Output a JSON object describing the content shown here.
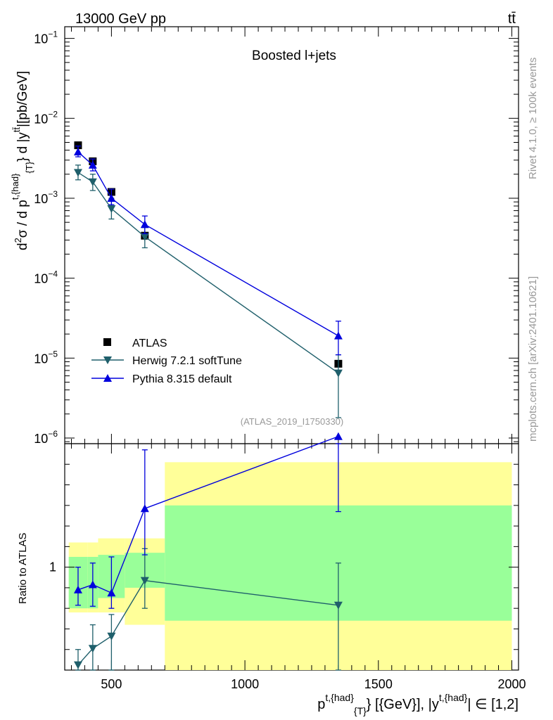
{
  "header": {
    "left": "13000 GeV pp",
    "right": "tt̄"
  },
  "side_labels": {
    "rivet": "Rivet 4.1.0, ≥ 100k events",
    "mcplots": "mcplots.cern.ch [arXiv:2401.10621]"
  },
  "colors": {
    "atlas": "#000000",
    "herwig": "#1f5f6b",
    "pythia": "#0000dd",
    "band_inner": "#99ff99",
    "band_outer": "#ffff99"
  },
  "chart_data": [
    {
      "type": "scatter",
      "title": "Boosted l+jets",
      "ylabel": "d²σ / d p^{t,{had}}_{T} d |y^{tt̄}|[pb/GeV]",
      "yscale": "log",
      "ylim": [
        8.5e-07,
        0.14
      ],
      "xlim": [
        325,
        2025
      ],
      "x_ticks": [
        500,
        1000,
        1500,
        2000
      ],
      "y_ticks": [
        {
          "value": 0.1,
          "mant": "10",
          "exp": "−1"
        },
        {
          "value": 0.01,
          "mant": "10",
          "exp": "−2"
        },
        {
          "value": 0.001,
          "mant": "10",
          "exp": "−3"
        },
        {
          "value": 0.0001,
          "mant": "10",
          "exp": "−4"
        },
        {
          "value": 1e-05,
          "mant": "10",
          "exp": "−5"
        },
        {
          "value": 1e-06,
          "mant": "10",
          "exp": "−6"
        }
      ],
      "watermark": "(ATLAS_2019_I1750330)",
      "legend": [
        "ATLAS",
        "Herwig 7.2.1 softTune",
        "Pythia 8.315 default"
      ],
      "legend_position": "lower-left",
      "series": [
        {
          "name": "ATLAS",
          "x": [
            375,
            430,
            500,
            625,
            1350
          ],
          "y": [
            0.0046,
            0.0029,
            0.0012,
            0.00034,
            8.5e-06
          ]
        },
        {
          "name": "Herwig 7.2.1 softTune",
          "x": [
            375,
            430,
            500,
            625,
            1350
          ],
          "y": [
            0.0021,
            0.0016,
            0.00074,
            0.00033,
            6.5e-06
          ],
          "err_lo": [
            0.0017,
            0.00125,
            0.00055,
            0.00024,
            1.8e-06
          ],
          "err_hi": [
            0.0026,
            0.002,
            0.001,
            0.00043,
            1.1e-05
          ]
        },
        {
          "name": "Pythia 8.315 default",
          "x": [
            375,
            430,
            500,
            625,
            1350
          ],
          "y": [
            0.0038,
            0.0026,
            0.001,
            0.00047,
            1.9e-05
          ],
          "err_lo": [
            0.0033,
            0.0022,
            0.00083,
            0.00036,
            1.1e-05
          ],
          "err_hi": [
            0.0045,
            0.0031,
            0.0013,
            0.0006,
            2.9e-05
          ]
        }
      ]
    },
    {
      "type": "scatter",
      "ylabel": "Ratio to ATLAS",
      "xlabel": "p^{t,{had}}_{T} [{GeV}], |y^{t,{had}}| ∈ [1,2]",
      "ylim": [
        0.5,
        1.6
      ],
      "y_ticks": [
        {
          "value": 1,
          "label": "1"
        }
      ],
      "bands": [
        {
          "x0": 340,
          "x1": 410,
          "inner": [
            0.8,
            1.05
          ],
          "outer": [
            0.78,
            1.12
          ]
        },
        {
          "x0": 410,
          "x1": 450,
          "inner": [
            0.8,
            1.05
          ],
          "outer": [
            0.78,
            1.12
          ]
        },
        {
          "x0": 450,
          "x1": 550,
          "inner": [
            0.85,
            1.06
          ],
          "outer": [
            0.78,
            1.14
          ]
        },
        {
          "x0": 550,
          "x1": 700,
          "inner": [
            0.9,
            1.07
          ],
          "outer": [
            0.72,
            1.14
          ]
        },
        {
          "x0": 700,
          "x1": 2000,
          "inner": [
            0.74,
            1.3
          ],
          "outer": [
            0.5,
            1.51
          ]
        }
      ],
      "series": [
        {
          "name": "Herwig 7.2.1 softTune",
          "x": [
            375,
            430,
            500,
            625,
            1350
          ],
          "y": [
            0.525,
            0.605,
            0.665,
            0.935,
            0.815
          ],
          "err_lo": [
            0.5,
            0.5,
            0.5,
            0.8,
            0.5
          ],
          "err_hi": [
            0.6,
            0.72,
            0.77,
            1.09,
            1.02
          ]
        },
        {
          "name": "Pythia 8.315 default",
          "x": [
            375,
            430,
            500,
            625,
            1350
          ],
          "y": [
            0.89,
            0.915,
            0.875,
            1.285,
            1.635
          ],
          "err_lo": [
            0.815,
            0.81,
            0.8,
            1.06,
            1.27
          ],
          "err_hi": [
            1.0,
            1.02,
            1.05,
            1.57,
            1.65
          ]
        }
      ]
    }
  ]
}
